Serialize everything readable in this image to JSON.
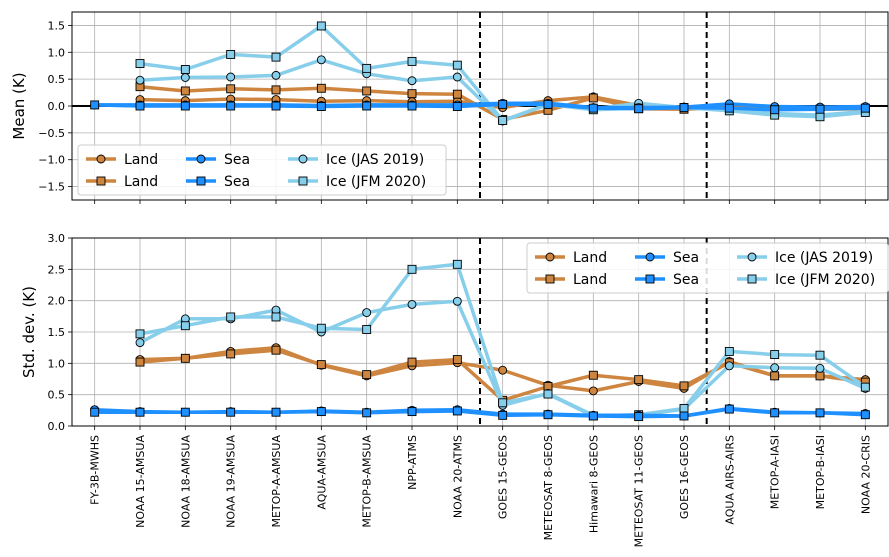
{
  "chart_data": [
    {
      "type": "line",
      "ylabel": "Mean (K)",
      "ylim": [
        -1.75,
        1.75
      ],
      "yticks": [
        "−1.5",
        "−1.0",
        "−0.5",
        "0.0",
        "0.5",
        "1.0",
        "1.5"
      ],
      "grid": true,
      "legend_position": "lower-left",
      "categories": [
        "FY-3B-MWHS",
        "NOAA 15-AMSUA",
        "NOAA 18-AMSUA",
        "NOAA 19-AMSUA",
        "METOP-A-AMSUA",
        "AQUA-AMSUA",
        "METOP-B-AMSUA",
        "NPP-ATMS",
        "NOAA 20-ATMS",
        "GOES 15-GEOS",
        "METEOSAT 8-GEOS",
        "Himawari 8-GEOS",
        "METEOSAT 11-GEOS",
        "GOES 16-GEOS",
        "AQUA AIRS-AIRS",
        "METOP-A-IASI",
        "METOP-B-IASI",
        "NOAA 20-CRIS"
      ],
      "vlines_after_index": [
        8,
        13
      ],
      "series": [
        {
          "name": "Land",
          "marker": "circle",
          "color": "#cd853f",
          "values": [
            null,
            0.12,
            0.1,
            0.13,
            0.12,
            0.09,
            0.1,
            0.08,
            0.09,
            -0.03,
            0.1,
            0.17,
            0.01,
            -0.02,
            0.0,
            -0.04,
            -0.05,
            -0.04
          ]
        },
        {
          "name": "Land",
          "marker": "square",
          "color": "#cd853f",
          "values": [
            null,
            0.36,
            0.28,
            0.32,
            0.3,
            0.33,
            0.28,
            0.23,
            0.22,
            -0.25,
            -0.08,
            0.15,
            -0.05,
            -0.06,
            -0.02,
            -0.06,
            -0.06,
            -0.05
          ]
        },
        {
          "name": "Sea",
          "marker": "circle",
          "color": "#1e90ff",
          "values": [
            0.02,
            0.02,
            0.02,
            0.02,
            0.02,
            0.01,
            0.02,
            0.02,
            0.02,
            0.05,
            0.05,
            -0.03,
            -0.03,
            -0.02,
            0.04,
            -0.01,
            -0.02,
            -0.01
          ]
        },
        {
          "name": "Sea",
          "marker": "square",
          "color": "#1e90ff",
          "values": [
            0.02,
            0.0,
            0.0,
            0.0,
            0.0,
            -0.01,
            0.0,
            0.0,
            -0.01,
            0.03,
            0.03,
            -0.04,
            -0.05,
            -0.03,
            -0.04,
            -0.07,
            -0.06,
            -0.04
          ]
        },
        {
          "name": "Ice (JAS 2019)",
          "marker": "circle",
          "color": "#87ceeb",
          "values": [
            null,
            0.48,
            0.53,
            0.54,
            0.57,
            0.86,
            0.6,
            0.47,
            0.54,
            -0.28,
            0.03,
            -0.05,
            0.05,
            -0.03,
            -0.07,
            -0.14,
            -0.17,
            -0.1
          ]
        },
        {
          "name": "Ice (JFM 2020)",
          "marker": "square",
          "color": "#87ceeb",
          "values": [
            null,
            0.79,
            0.68,
            0.96,
            0.91,
            1.49,
            0.7,
            0.83,
            0.76,
            -0.27,
            0.03,
            -0.07,
            -0.04,
            -0.03,
            -0.09,
            -0.17,
            -0.2,
            -0.12
          ]
        }
      ]
    },
    {
      "type": "line",
      "ylabel": "Std. dev. (K)",
      "ylim": [
        0.0,
        3.0
      ],
      "yticks": [
        "0.0",
        "0.5",
        "1.0",
        "1.5",
        "2.0",
        "2.5",
        "3.0"
      ],
      "grid": true,
      "legend_position": "top-right",
      "categories": [
        "FY-3B-MWHS",
        "NOAA 15-AMSUA",
        "NOAA 18-AMSUA",
        "NOAA 19-AMSUA",
        "METOP-A-AMSUA",
        "AQUA-AMSUA",
        "METOP-B-AMSUA",
        "NPP-ATMS",
        "NOAA 20-ATMS",
        "GOES 15-GEOS",
        "METEOSAT 8-GEOS",
        "Himawari 8-GEOS",
        "METEOSAT 11-GEOS",
        "GOES 16-GEOS",
        "AQUA AIRS-AIRS",
        "METOP-A-IASI",
        "METOP-B-IASI",
        "NOAA 20-CRIS"
      ],
      "vlines_after_index": [
        8,
        13
      ],
      "series": [
        {
          "name": "Land",
          "marker": "circle",
          "color": "#cd853f",
          "values": [
            null,
            1.06,
            1.08,
            1.19,
            1.25,
            0.97,
            0.8,
            0.96,
            1.01,
            0.89,
            0.65,
            0.56,
            0.71,
            0.6,
            1.03,
            0.8,
            0.8,
            0.74
          ]
        },
        {
          "name": "Land",
          "marker": "square",
          "color": "#cd853f",
          "values": [
            null,
            1.02,
            1.08,
            1.15,
            1.21,
            0.98,
            0.82,
            1.02,
            1.06,
            0.41,
            0.63,
            0.81,
            0.74,
            0.64,
            1.01,
            0.8,
            0.8,
            0.7
          ]
        },
        {
          "name": "Sea",
          "marker": "circle",
          "color": "#1e90ff",
          "values": [
            0.26,
            0.23,
            0.22,
            0.23,
            0.22,
            0.24,
            0.22,
            0.25,
            0.26,
            0.19,
            0.19,
            0.17,
            0.17,
            0.16,
            0.28,
            0.22,
            0.21,
            0.2
          ]
        },
        {
          "name": "Sea",
          "marker": "square",
          "color": "#1e90ff",
          "values": [
            0.22,
            0.22,
            0.22,
            0.22,
            0.22,
            0.23,
            0.21,
            0.23,
            0.24,
            0.17,
            0.18,
            0.16,
            0.15,
            0.16,
            0.27,
            0.21,
            0.21,
            0.18
          ]
        },
        {
          "name": "Ice (JAS 2019)",
          "marker": "circle",
          "color": "#87ceeb",
          "values": [
            null,
            1.33,
            1.71,
            1.71,
            1.85,
            1.5,
            1.81,
            1.94,
            1.99,
            0.33,
            0.52,
            0.17,
            0.17,
            0.27,
            0.96,
            0.93,
            0.92,
            0.6
          ]
        },
        {
          "name": "Ice (JFM 2020)",
          "marker": "square",
          "color": "#87ceeb",
          "values": [
            null,
            1.47,
            1.6,
            1.74,
            1.74,
            1.56,
            1.54,
            2.5,
            2.58,
            0.37,
            0.51,
            0.16,
            0.18,
            0.28,
            1.19,
            1.14,
            1.13,
            0.62
          ]
        }
      ]
    }
  ]
}
